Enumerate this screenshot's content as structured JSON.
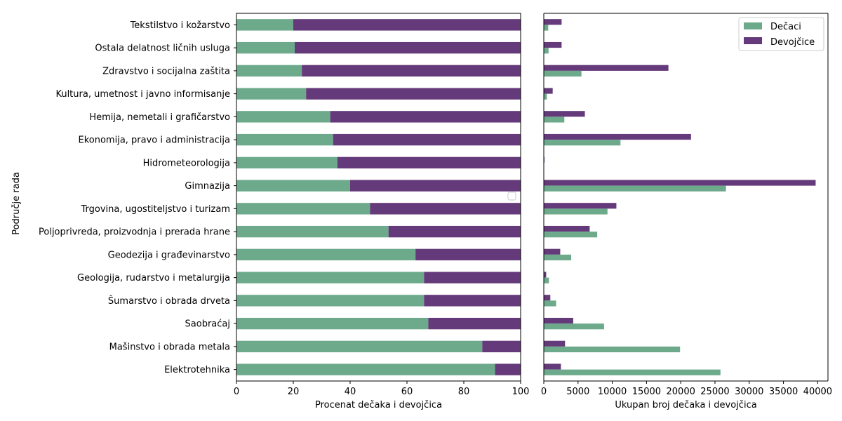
{
  "chart_data": [
    {
      "type": "bar",
      "orientation": "horizontal",
      "stacked": true,
      "categories": [
        "Tekstilstvo i kožarstvo",
        "Ostala delatnost ličnih usluga",
        "Zdravstvo i socijalna zaštita",
        "Kultura, umetnost i javno informisanje",
        "Hemija, nemetali i grafičarstvo",
        "Ekonomija, pravo i administracija",
        "Hidrometeorologija",
        "Gimnazija",
        "Trgovina, ugostiteljstvo i turizam",
        "Poljoprivreda, proizvodnja i prerada hrane",
        "Geodezija i građevinarstvo",
        "Geologija, rudarstvo i metalurgija",
        "Šumarstvo i obrada drveta",
        "Saobraćaj",
        "Mašinstvo i obrada metala",
        "Elektrotehnika"
      ],
      "series": [
        {
          "name": "Dečaci",
          "values": [
            20,
            20.5,
            23,
            24.5,
            33,
            34,
            35.5,
            40,
            47,
            53.5,
            63,
            66,
            66,
            67.5,
            86.5,
            91
          ]
        },
        {
          "name": "Devojčice",
          "values": [
            80,
            79.5,
            77,
            75.5,
            67,
            66,
            64.5,
            60,
            53,
            46.5,
            37,
            34,
            34,
            32.5,
            13.5,
            9
          ]
        }
      ],
      "xlabel": "Procenat dečaka i devojčica",
      "ylabel": "Područje rada",
      "xlim": [
        0,
        100
      ],
      "xticks": [
        "0",
        "20",
        "40",
        "60",
        "80",
        "100"
      ]
    },
    {
      "type": "bar",
      "orientation": "horizontal",
      "stacked": false,
      "categories": [
        "Tekstilstvo i kožarstvo",
        "Ostala delatnost ličnih usluga",
        "Zdravstvo i socijalna zaštita",
        "Kultura, umetnost i javno informisanje",
        "Hemija, nemetali i grafičarstvo",
        "Ekonomija, pravo i administracija",
        "Hidrometeorologija",
        "Gimnazija",
        "Trgovina, ugostiteljstvo i turizam",
        "Poljoprivreda, proizvodnja i prerada hrane",
        "Geodezija i građevinarstvo",
        "Geologija, rudarstvo i metalurgija",
        "Šumarstvo i obrada drveta",
        "Saobraćaj",
        "Mašinstvo i obrada metala",
        "Elektrotehnika"
      ],
      "series": [
        {
          "name": "Dečaci",
          "values": [
            650,
            700,
            5500,
            450,
            3000,
            11200,
            50,
            26600,
            9300,
            7800,
            4000,
            750,
            1800,
            8800,
            19900,
            25800
          ]
        },
        {
          "name": "Devojčice",
          "values": [
            2600,
            2600,
            18200,
            1300,
            6000,
            21500,
            100,
            39700,
            10600,
            6700,
            2400,
            350,
            950,
            4300,
            3100,
            2500
          ]
        }
      ],
      "xlabel": "Ukupan broj dečaka i devojčica",
      "xlim": [
        0,
        41500
      ],
      "xticks": [
        "0",
        "5000",
        "10000",
        "15000",
        "20000",
        "25000",
        "30000",
        "35000",
        "40000"
      ],
      "legend_position": "top-right"
    }
  ],
  "colors": {
    "boys": "#6daa8c",
    "girls": "#653a7a"
  }
}
